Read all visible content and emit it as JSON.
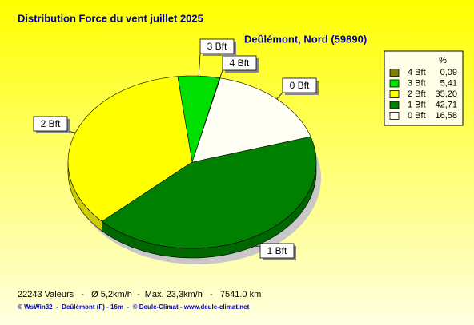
{
  "chart_data": {
    "type": "pie",
    "title": "Distribution Force du vent  juillet 2025",
    "subtitle": "Deûlémont, Nord (59890)",
    "legend_header": "%",
    "categories": [
      "4 Bft",
      "3 Bft",
      "2 Bft",
      "1 Bft",
      "0 Bft"
    ],
    "values": [
      0.09,
      5.41,
      35.2,
      42.71,
      16.58
    ],
    "value_labels": [
      "0,09",
      "5,41",
      "35,20",
      "42,71",
      "16,58"
    ],
    "colors": [
      "#808000",
      "#00e000",
      "#ffff00",
      "#008000",
      "#fffff4"
    ],
    "legend": "top-right",
    "footer": "22243 Valeurs   -   Ø 5,2km/h  -  Max. 23,3km/h   -   7541.0 km",
    "credit": "© WsWin32  -  Deûlémont (F) - 16m  -  © Deule-Climat - www.deule-climat.net"
  }
}
